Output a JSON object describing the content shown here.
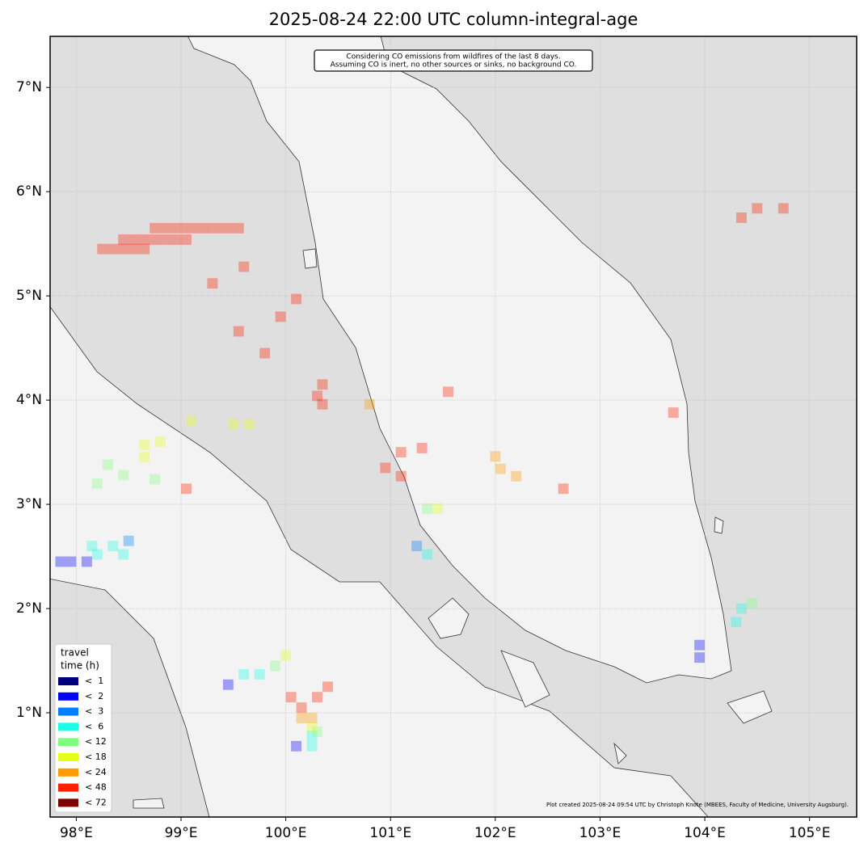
{
  "chart_data": {
    "type": "map",
    "title": "2025-08-24 22:00 UTC column-integral-age",
    "annotation": [
      "Considering CO emissions from wildfires of the last 8 days.",
      "Assuming CO is inert, no other sources or sinks, no background CO."
    ],
    "credit": "Plot created 2025-08-24 09:54 UTC by Christoph Knote (MBEES, Faculty of Medicine, University Augsburg).",
    "legend_title": [
      "travel",
      "time (h)"
    ],
    "legend_loc": "lower left",
    "grid": true,
    "cell_size": 0.1,
    "cell_opacity": 0.35,
    "xlim": [
      97.75,
      105.45
    ],
    "ylim": [
      0,
      7.49
    ],
    "xticks": [
      {
        "value": 98,
        "label": "98°E"
      },
      {
        "value": 99,
        "label": "99°E"
      },
      {
        "value": 100,
        "label": "100°E"
      },
      {
        "value": 101,
        "label": "101°E"
      },
      {
        "value": 102,
        "label": "102°E"
      },
      {
        "value": 103,
        "label": "103°E"
      },
      {
        "value": 104,
        "label": "104°E"
      },
      {
        "value": 105,
        "label": "105°E"
      }
    ],
    "yticks": [
      {
        "value": 1,
        "label": "1°N"
      },
      {
        "value": 2,
        "label": "2°N"
      },
      {
        "value": 3,
        "label": "3°N"
      },
      {
        "value": 4,
        "label": "4°N"
      },
      {
        "value": 5,
        "label": "5°N"
      },
      {
        "value": 6,
        "label": "6°N"
      },
      {
        "value": 7,
        "label": "7°N"
      }
    ],
    "series": [
      {
        "name": "<  1",
        "color": "#00007f",
        "x": [],
        "y": []
      },
      {
        "name": "<  2",
        "color": "#0000ff",
        "x": [
          97.85,
          97.95,
          98.1,
          99.45,
          100.1,
          103.95,
          103.95
        ],
        "y": [
          2.45,
          2.45,
          2.45,
          1.27,
          0.68,
          1.65,
          1.53
        ]
      },
      {
        "name": "<  3",
        "color": "#0080ff",
        "x": [
          101.25,
          98.5
        ],
        "y": [
          2.6,
          2.65
        ]
      },
      {
        "name": "<  6",
        "color": "#19ffe6",
        "x": [
          98.15,
          98.35,
          98.2,
          98.45,
          99.6,
          99.75,
          100.25,
          100.25,
          101.35,
          104.3,
          104.35
        ],
        "y": [
          2.6,
          2.6,
          2.52,
          2.52,
          1.37,
          1.37,
          0.78,
          0.68,
          2.52,
          1.87,
          2.0
        ]
      },
      {
        "name": "< 12",
        "color": "#80ff80",
        "x": [
          98.2,
          98.45,
          98.75,
          98.3,
          101.35,
          99.9,
          100.3,
          104.45
        ],
        "y": [
          3.2,
          3.28,
          3.24,
          3.38,
          2.96,
          1.45,
          0.82,
          2.05
        ]
      },
      {
        "name": "< 18",
        "color": "#e6ff19",
        "x": [
          99.1,
          99.5,
          99.65,
          98.65,
          98.8,
          98.65,
          100.25,
          100.0,
          101.45
        ],
        "y": [
          3.8,
          3.77,
          3.77,
          3.57,
          3.6,
          3.45,
          0.86,
          1.55,
          2.96
        ]
      },
      {
        "name": "< 24",
        "color": "#ff9a00",
        "x": [
          102.05,
          102.2,
          102.0,
          100.8,
          100.15,
          100.25
        ],
        "y": [
          3.34,
          3.27,
          3.46,
          3.96,
          0.95,
          0.95
        ]
      },
      {
        "name": "< 48",
        "color": "#ff2000",
        "x": [
          98.75,
          98.85,
          98.95,
          99.05,
          99.15,
          99.25,
          99.35,
          99.45,
          99.55,
          98.45,
          98.55,
          98.65,
          98.75,
          98.85,
          98.95,
          99.05,
          98.25,
          98.35,
          98.45,
          98.55,
          98.65,
          99.6,
          99.3,
          100.1,
          99.95,
          99.55,
          99.8,
          100.35,
          100.3,
          100.35,
          101.55,
          101.1,
          101.3,
          100.95,
          101.1,
          104.5,
          104.75,
          104.35,
          103.7,
          99.05,
          102.65,
          100.05,
          100.15,
          100.3,
          100.4
        ],
        "y": [
          5.65,
          5.65,
          5.65,
          5.65,
          5.65,
          5.65,
          5.65,
          5.65,
          5.65,
          5.54,
          5.54,
          5.54,
          5.54,
          5.54,
          5.54,
          5.54,
          5.45,
          5.45,
          5.45,
          5.45,
          5.45,
          5.28,
          5.12,
          4.97,
          4.8,
          4.66,
          4.45,
          4.15,
          4.04,
          3.96,
          4.08,
          3.5,
          3.54,
          3.35,
          3.27,
          5.84,
          5.84,
          5.75,
          3.88,
          3.15,
          3.15,
          1.15,
          1.05,
          1.15,
          1.25
        ]
      },
      {
        "name": "< 72",
        "color": "#7f0000",
        "x": [],
        "y": []
      }
    ]
  }
}
